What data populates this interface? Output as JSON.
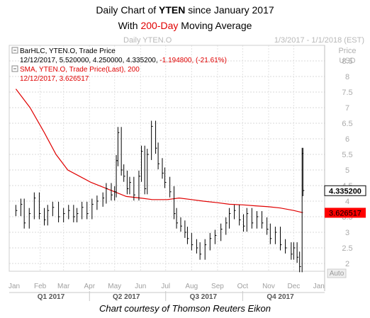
{
  "title": {
    "line1_prefix": "Daily Chart of ",
    "line1_ticker": "YTEN",
    "line1_suffix": " since January 2017",
    "line2_prefix": "With ",
    "line2_highlight": "200-Day",
    "line2_suffix": " Moving Average"
  },
  "caption": "Chart courtesy of Thomson Reuters Eikon",
  "chart_data": {
    "type": "line",
    "header_left": "Daily YTEN.O",
    "header_right": "1/3/2017 - 1/1/2018 (EST)",
    "legend": [
      {
        "line1": "BarHLC, YTEN.O, Trade Price",
        "line2_prefix": "12/12/2017, 5.520000, 4.250000, 4.335200, ",
        "line2_change": "-1.194800, (-21.61%)",
        "color": "#000000"
      },
      {
        "line1": "SMA, YTEN.O, Trade Price(Last),  200",
        "line2": "12/12/2017, 3.626517",
        "color": "#e00000"
      }
    ],
    "y_axis_title": [
      "Price",
      "USD"
    ],
    "auto_label": "Auto",
    "y_ticks": [
      "8.5",
      "8",
      "7.5",
      "7",
      "6.5",
      "6",
      "5.5",
      "5",
      "4.5",
      "4",
      "3.5",
      "3",
      "2.5",
      "2"
    ],
    "ylim": [
      1.75,
      9.0
    ],
    "x_months": [
      "Jan",
      "Feb",
      "Mar",
      "Apr",
      "May",
      "Jun",
      "Jul",
      "Aug",
      "Sep",
      "Oct",
      "Nov",
      "Dec",
      "Jan"
    ],
    "x_quarters": [
      "Q1 2017",
      "Q2 2017",
      "Q3 2017",
      "Q4 2017"
    ],
    "last_price": {
      "value": 4.3352,
      "label": "4.335200",
      "color": "#000000"
    },
    "last_sma": {
      "value": 3.626517,
      "label": "3.626517",
      "color": "#e00000"
    },
    "grid": true,
    "colors": {
      "price": "#000000",
      "sma": "#e00000"
    },
    "series": [
      {
        "name": "BarHLC YTEN.O",
        "x": [
          "2017-01-03",
          "2017-01-09",
          "2017-01-13",
          "2017-01-19",
          "2017-01-25",
          "2017-01-31",
          "2017-02-06",
          "2017-02-10",
          "2017-02-16",
          "2017-02-23",
          "2017-03-01",
          "2017-03-07",
          "2017-03-13",
          "2017-03-17",
          "2017-03-23",
          "2017-03-29",
          "2017-04-04",
          "2017-04-10",
          "2017-04-17",
          "2017-04-21",
          "2017-04-27",
          "2017-05-01",
          "2017-05-03",
          "2017-05-05",
          "2017-05-09",
          "2017-05-12",
          "2017-05-16",
          "2017-05-19",
          "2017-05-24",
          "2017-05-30",
          "2017-06-02",
          "2017-06-06",
          "2017-06-09",
          "2017-06-14",
          "2017-06-19",
          "2017-06-22",
          "2017-06-27",
          "2017-06-30",
          "2017-07-06",
          "2017-07-11",
          "2017-07-14",
          "2017-07-19",
          "2017-07-24",
          "2017-07-27",
          "2017-08-01",
          "2017-08-07",
          "2017-08-11",
          "2017-08-17",
          "2017-08-23",
          "2017-08-29",
          "2017-09-05",
          "2017-09-11",
          "2017-09-15",
          "2017-09-21",
          "2017-09-27",
          "2017-10-02",
          "2017-10-06",
          "2017-10-12",
          "2017-10-18",
          "2017-10-24",
          "2017-10-30",
          "2017-11-03",
          "2017-11-09",
          "2017-11-15",
          "2017-11-21",
          "2017-11-28",
          "2017-12-01",
          "2017-12-05",
          "2017-12-08",
          "2017-12-11",
          "2017-12-12"
        ],
        "values": [
          3.7,
          3.9,
          3.3,
          3.6,
          4.1,
          3.6,
          3.4,
          3.7,
          3.8,
          3.5,
          3.6,
          3.7,
          3.5,
          3.6,
          3.8,
          3.6,
          3.9,
          4.0,
          4.1,
          4.4,
          4.2,
          4.3,
          5.3,
          6.2,
          5.0,
          4.8,
          4.4,
          4.6,
          4.2,
          4.8,
          5.6,
          4.4,
          5.5,
          6.4,
          5.7,
          5.2,
          4.9,
          4.6,
          4.3,
          3.6,
          3.3,
          3.2,
          3.0,
          2.8,
          2.6,
          2.5,
          2.3,
          2.6,
          2.8,
          2.9,
          3.1,
          3.3,
          3.6,
          3.7,
          3.4,
          3.2,
          3.6,
          3.3,
          3.5,
          3.3,
          3.1,
          2.8,
          3.0,
          2.6,
          2.5,
          2.3,
          2.5,
          2.2,
          1.9,
          5.53,
          4.34
        ]
      },
      {
        "name": "SMA 200",
        "x": [
          "2017-01-03",
          "2017-01-20",
          "2017-02-06",
          "2017-02-20",
          "2017-03-06",
          "2017-03-20",
          "2017-04-03",
          "2017-04-17",
          "2017-05-01",
          "2017-05-15",
          "2017-06-01",
          "2017-06-15",
          "2017-07-03",
          "2017-07-17",
          "2017-08-01",
          "2017-08-15",
          "2017-09-01",
          "2017-09-15",
          "2017-10-02",
          "2017-10-16",
          "2017-11-01",
          "2017-11-15",
          "2017-12-01",
          "2017-12-12"
        ],
        "values": [
          7.6,
          7.0,
          6.2,
          5.5,
          5.0,
          4.8,
          4.6,
          4.45,
          4.3,
          4.15,
          4.1,
          4.05,
          4.05,
          4.1,
          4.05,
          4.0,
          3.95,
          3.9,
          3.88,
          3.85,
          3.82,
          3.78,
          3.7,
          3.63
        ]
      }
    ]
  }
}
